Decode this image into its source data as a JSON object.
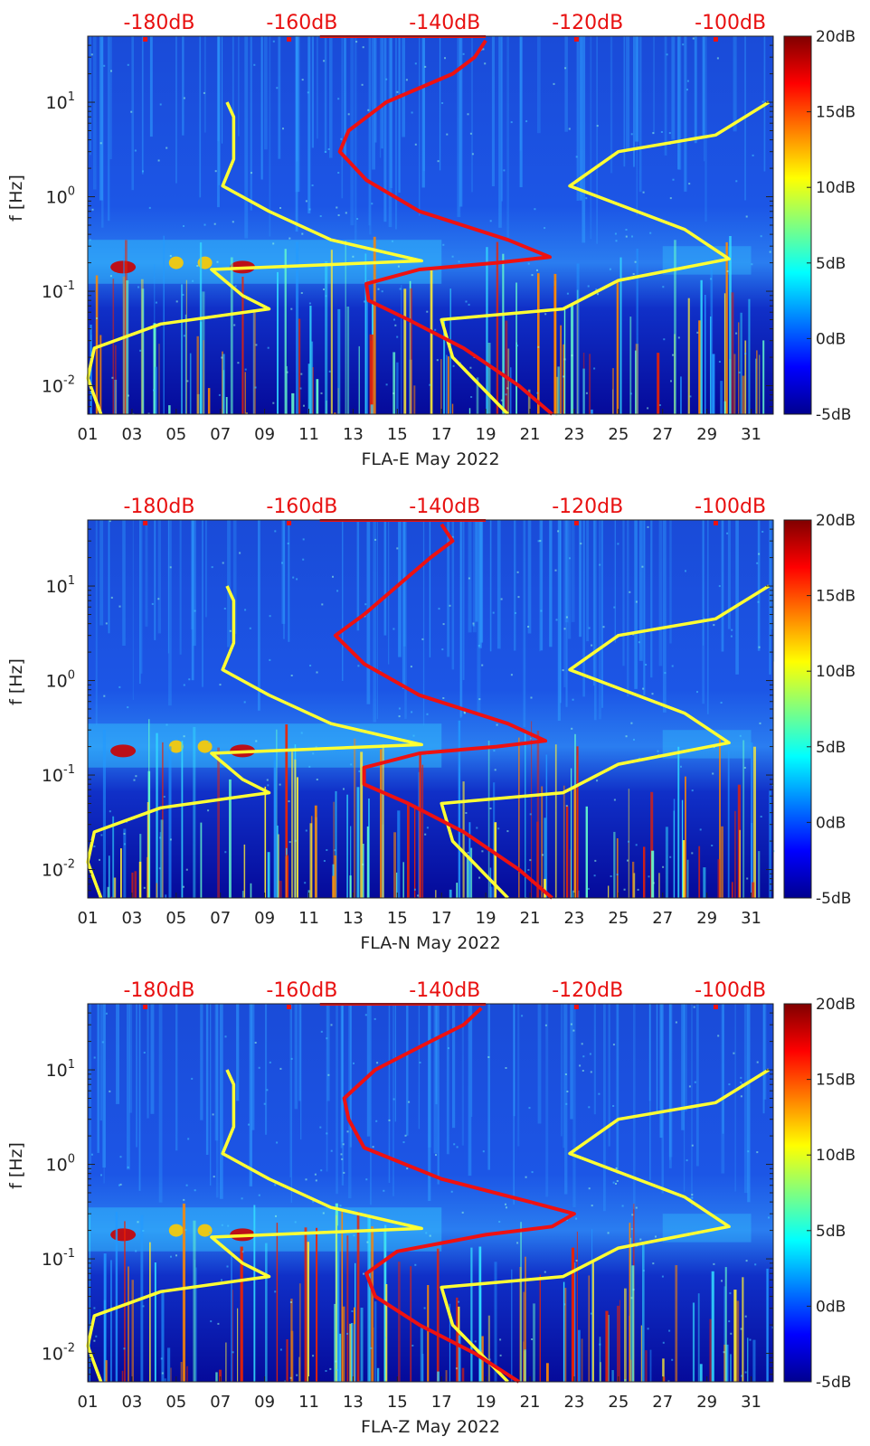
{
  "colors": {
    "red_curve": "#ee1111",
    "yellow_curve": "#ffff33",
    "top_label": "#e81010",
    "axis": "#222222"
  },
  "chart_data": [
    {
      "type": "heatmap",
      "xlabel": "FLA-E May 2022",
      "ylabel": "f [Hz]",
      "x_ticks": [
        "01",
        "03",
        "05",
        "07",
        "09",
        "11",
        "13",
        "15",
        "17",
        "19",
        "21",
        "23",
        "25",
        "27",
        "29",
        "31"
      ],
      "x_range_day": [
        1,
        32
      ],
      "y_scale": "log",
      "y_range_hz": [
        0.005,
        50
      ],
      "y_ticks": [
        {
          "exp": "-2",
          "v": 0.01
        },
        {
          "exp": "-1",
          "v": 0.1
        },
        {
          "exp": "0",
          "v": 1
        },
        {
          "exp": "1",
          "v": 10
        }
      ],
      "top_axis_ticks": [
        "-180dB",
        "-160dB",
        "-140dB",
        "-120dB",
        "-100dB"
      ],
      "top_axis_range_db": [
        -190,
        -94
      ],
      "colorbar": {
        "ticks": [
          "20dB",
          "15dB",
          "10dB",
          "5dB",
          "0dB",
          "-5dB"
        ],
        "range_db": [
          -5,
          20
        ]
      },
      "yellow_curve": [
        [
          1.6,
          0.005
        ],
        [
          1.0,
          0.012
        ],
        [
          1.3,
          0.025
        ],
        [
          4.3,
          0.045
        ],
        [
          9.2,
          0.065
        ],
        [
          8.0,
          0.09
        ],
        [
          6.6,
          0.17
        ],
        [
          16.1,
          0.21
        ],
        [
          12.0,
          0.35
        ],
        [
          9.2,
          0.7
        ],
        [
          7.1,
          1.3
        ],
        [
          7.6,
          2.5
        ],
        [
          7.6,
          4.5
        ],
        [
          7.6,
          7.0
        ],
        [
          7.3,
          10.0
        ]
      ],
      "yellow_curve_right": [
        [
          20.0,
          0.005
        ],
        [
          17.5,
          0.02
        ],
        [
          17.0,
          0.05
        ],
        [
          22.5,
          0.065
        ],
        [
          25.0,
          0.13
        ],
        [
          30.0,
          0.22
        ],
        [
          28.0,
          0.45
        ],
        [
          22.8,
          1.3
        ],
        [
          25.0,
          3.0
        ],
        [
          29.4,
          4.5
        ],
        [
          31.8,
          10.0
        ]
      ],
      "red_curve": [
        [
          22.0,
          0.005
        ],
        [
          20.5,
          0.01
        ],
        [
          18.0,
          0.025
        ],
        [
          15.5,
          0.05
        ],
        [
          13.7,
          0.08
        ],
        [
          13.6,
          0.12
        ],
        [
          16.0,
          0.17
        ],
        [
          19.5,
          0.2
        ],
        [
          21.9,
          0.23
        ],
        [
          20.0,
          0.35
        ],
        [
          16.0,
          0.7
        ],
        [
          13.6,
          1.5
        ],
        [
          12.4,
          3.0
        ],
        [
          12.8,
          5.0
        ],
        [
          14.5,
          10.0
        ],
        [
          17.5,
          20.0
        ],
        [
          18.5,
          30.0
        ],
        [
          19.0,
          45.0
        ]
      ]
    },
    {
      "type": "heatmap",
      "xlabel": "FLA-N May 2022",
      "ylabel": "f [Hz]",
      "x_ticks": [
        "01",
        "03",
        "05",
        "07",
        "09",
        "11",
        "13",
        "15",
        "17",
        "19",
        "21",
        "23",
        "25",
        "27",
        "29",
        "31"
      ],
      "x_range_day": [
        1,
        32
      ],
      "y_scale": "log",
      "y_range_hz": [
        0.005,
        50
      ],
      "y_ticks": [
        {
          "exp": "-2",
          "v": 0.01
        },
        {
          "exp": "-1",
          "v": 0.1
        },
        {
          "exp": "0",
          "v": 1
        },
        {
          "exp": "1",
          "v": 10
        }
      ],
      "top_axis_ticks": [
        "-180dB",
        "-160dB",
        "-140dB",
        "-120dB",
        "-100dB"
      ],
      "top_axis_range_db": [
        -190,
        -94
      ],
      "colorbar": {
        "ticks": [
          "20dB",
          "15dB",
          "10dB",
          "5dB",
          "0dB",
          "-5dB"
        ],
        "range_db": [
          -5,
          20
        ]
      },
      "yellow_curve": [
        [
          1.6,
          0.005
        ],
        [
          1.0,
          0.012
        ],
        [
          1.3,
          0.025
        ],
        [
          4.3,
          0.045
        ],
        [
          9.2,
          0.065
        ],
        [
          8.0,
          0.09
        ],
        [
          6.6,
          0.17
        ],
        [
          16.1,
          0.21
        ],
        [
          12.0,
          0.35
        ],
        [
          9.2,
          0.7
        ],
        [
          7.1,
          1.3
        ],
        [
          7.6,
          2.5
        ],
        [
          7.6,
          4.5
        ],
        [
          7.6,
          7.0
        ],
        [
          7.3,
          10.0
        ]
      ],
      "yellow_curve_right": [
        [
          20.0,
          0.005
        ],
        [
          17.5,
          0.02
        ],
        [
          17.0,
          0.05
        ],
        [
          22.5,
          0.065
        ],
        [
          25.0,
          0.13
        ],
        [
          30.0,
          0.22
        ],
        [
          28.0,
          0.45
        ],
        [
          22.8,
          1.3
        ],
        [
          25.0,
          3.0
        ],
        [
          29.4,
          4.5
        ],
        [
          31.8,
          10.0
        ]
      ],
      "red_curve": [
        [
          22.0,
          0.005
        ],
        [
          20.5,
          0.01
        ],
        [
          18.0,
          0.025
        ],
        [
          15.5,
          0.05
        ],
        [
          13.5,
          0.08
        ],
        [
          13.5,
          0.12
        ],
        [
          16.0,
          0.17
        ],
        [
          19.5,
          0.2
        ],
        [
          21.7,
          0.23
        ],
        [
          20.0,
          0.35
        ],
        [
          16.0,
          0.7
        ],
        [
          13.5,
          1.5
        ],
        [
          12.2,
          3.0
        ],
        [
          13.5,
          5.0
        ],
        [
          15.0,
          10.0
        ],
        [
          16.5,
          20.0
        ],
        [
          17.5,
          30.0
        ],
        [
          17.0,
          45.0
        ]
      ]
    },
    {
      "type": "heatmap",
      "xlabel": "FLA-Z May 2022",
      "ylabel": "f [Hz]",
      "x_ticks": [
        "01",
        "03",
        "05",
        "07",
        "09",
        "11",
        "13",
        "15",
        "17",
        "19",
        "21",
        "23",
        "25",
        "27",
        "29",
        "31"
      ],
      "x_range_day": [
        1,
        32
      ],
      "y_scale": "log",
      "y_range_hz": [
        0.005,
        50
      ],
      "y_ticks": [
        {
          "exp": "-2",
          "v": 0.01
        },
        {
          "exp": "-1",
          "v": 0.1
        },
        {
          "exp": "0",
          "v": 1
        },
        {
          "exp": "1",
          "v": 10
        }
      ],
      "top_axis_ticks": [
        "-180dB",
        "-160dB",
        "-140dB",
        "-120dB",
        "-100dB"
      ],
      "top_axis_range_db": [
        -190,
        -94
      ],
      "colorbar": {
        "ticks": [
          "20dB",
          "15dB",
          "10dB",
          "5dB",
          "0dB",
          "-5dB"
        ],
        "range_db": [
          -5,
          20
        ]
      },
      "yellow_curve": [
        [
          1.6,
          0.005
        ],
        [
          1.0,
          0.012
        ],
        [
          1.3,
          0.025
        ],
        [
          4.3,
          0.045
        ],
        [
          9.2,
          0.065
        ],
        [
          8.0,
          0.09
        ],
        [
          6.6,
          0.17
        ],
        [
          16.1,
          0.21
        ],
        [
          12.0,
          0.35
        ],
        [
          9.2,
          0.7
        ],
        [
          7.1,
          1.3
        ],
        [
          7.6,
          2.5
        ],
        [
          7.6,
          4.5
        ],
        [
          7.6,
          7.0
        ],
        [
          7.3,
          10.0
        ]
      ],
      "yellow_curve_right": [
        [
          20.0,
          0.005
        ],
        [
          17.5,
          0.02
        ],
        [
          17.0,
          0.05
        ],
        [
          22.5,
          0.065
        ],
        [
          25.0,
          0.13
        ],
        [
          30.0,
          0.22
        ],
        [
          28.0,
          0.45
        ],
        [
          22.8,
          1.3
        ],
        [
          25.0,
          3.0
        ],
        [
          29.4,
          4.5
        ],
        [
          31.8,
          10.0
        ]
      ],
      "red_curve": [
        [
          20.5,
          0.005
        ],
        [
          18.5,
          0.01
        ],
        [
          16.0,
          0.02
        ],
        [
          14.0,
          0.04
        ],
        [
          13.6,
          0.07
        ],
        [
          15.0,
          0.12
        ],
        [
          19.0,
          0.18
        ],
        [
          22.0,
          0.22
        ],
        [
          23.0,
          0.3
        ],
        [
          21.0,
          0.4
        ],
        [
          17.0,
          0.7
        ],
        [
          13.5,
          1.5
        ],
        [
          12.8,
          3.0
        ],
        [
          12.6,
          5.0
        ],
        [
          14.0,
          10.0
        ],
        [
          16.5,
          20.0
        ],
        [
          18.0,
          30.0
        ],
        [
          18.8,
          45.0
        ]
      ]
    }
  ]
}
